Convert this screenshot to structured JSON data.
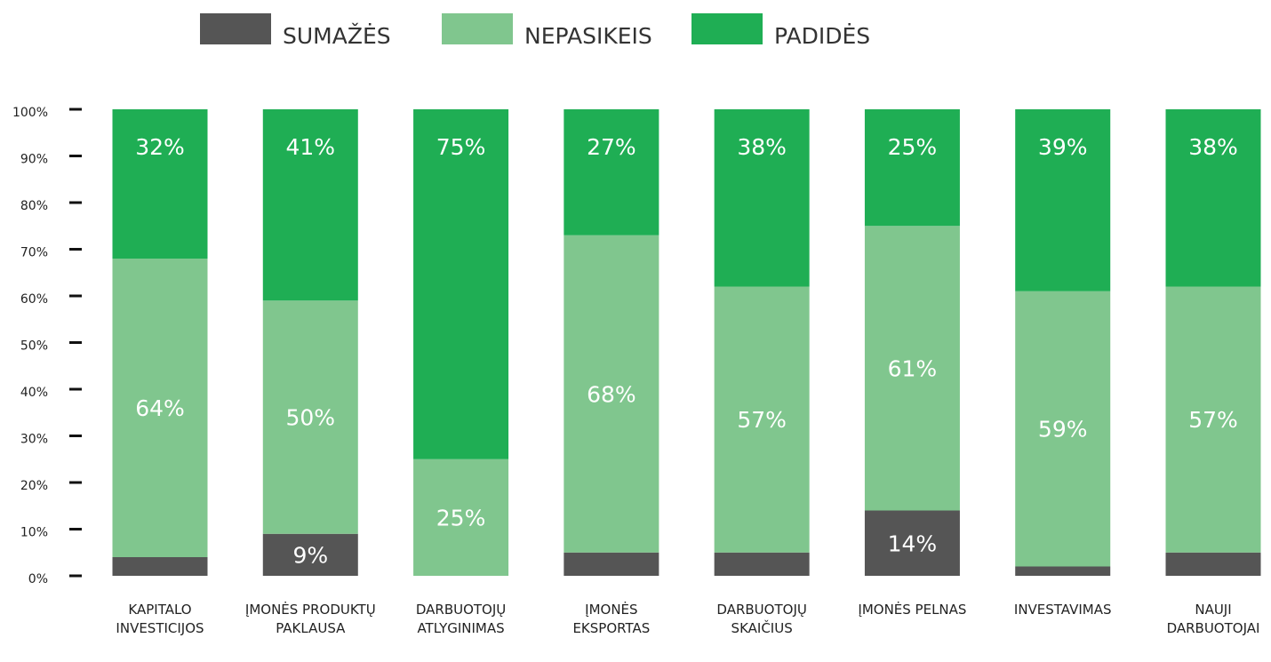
{
  "chart_data": {
    "type": "stacked_bar",
    "categories": [
      "KAPITALO INVESTICIJOS",
      "ĮMONĖS PRODUKTŲ PAKLAUSA",
      "DARBUOTOJŲ ATLYGINIMAS",
      "ĮMONĖS EKSPORTAS",
      "DARBUOTOJŲ SKAIČIUS",
      "ĮMONĖS PELNAS",
      "INVESTAVIMAS",
      "NAUJI DARBUOTOJAI"
    ],
    "series": [
      {
        "name": "SUMAŽĖS",
        "color": "#555555",
        "values": [
          4,
          9,
          0,
          5,
          5,
          14,
          2,
          5
        ],
        "value_labels": [
          null,
          "9%",
          null,
          null,
          null,
          "14%",
          null,
          null
        ]
      },
      {
        "name": "NEPASIKEIS",
        "color": "#80c68e",
        "values": [
          64,
          50,
          25,
          68,
          57,
          61,
          59,
          57
        ],
        "value_labels": [
          "64%",
          "50%",
          "25%",
          "68%",
          "57%",
          "61%",
          "59%",
          "57%"
        ]
      },
      {
        "name": "PADIDĖS",
        "color": "#1fae54",
        "values": [
          32,
          41,
          75,
          27,
          38,
          25,
          39,
          38
        ],
        "value_labels": [
          "32%",
          "41%",
          "75%",
          "27%",
          "38%",
          "25%",
          "39%",
          "38%"
        ]
      }
    ],
    "ylim": [
      0,
      100
    ],
    "yticks": [
      {
        "value": 0,
        "label": "0%"
      },
      {
        "value": 10,
        "label": "10%"
      },
      {
        "value": 20,
        "label": "20%"
      },
      {
        "value": 30,
        "label": "30%"
      },
      {
        "value": 40,
        "label": "40%"
      },
      {
        "value": 50,
        "label": "50%"
      },
      {
        "value": 60,
        "label": "60%"
      },
      {
        "value": 70,
        "label": "70%"
      },
      {
        "value": 80,
        "label": "80%"
      },
      {
        "value": 90,
        "label": "90%"
      },
      {
        "value": 100,
        "label": "100%"
      }
    ]
  }
}
